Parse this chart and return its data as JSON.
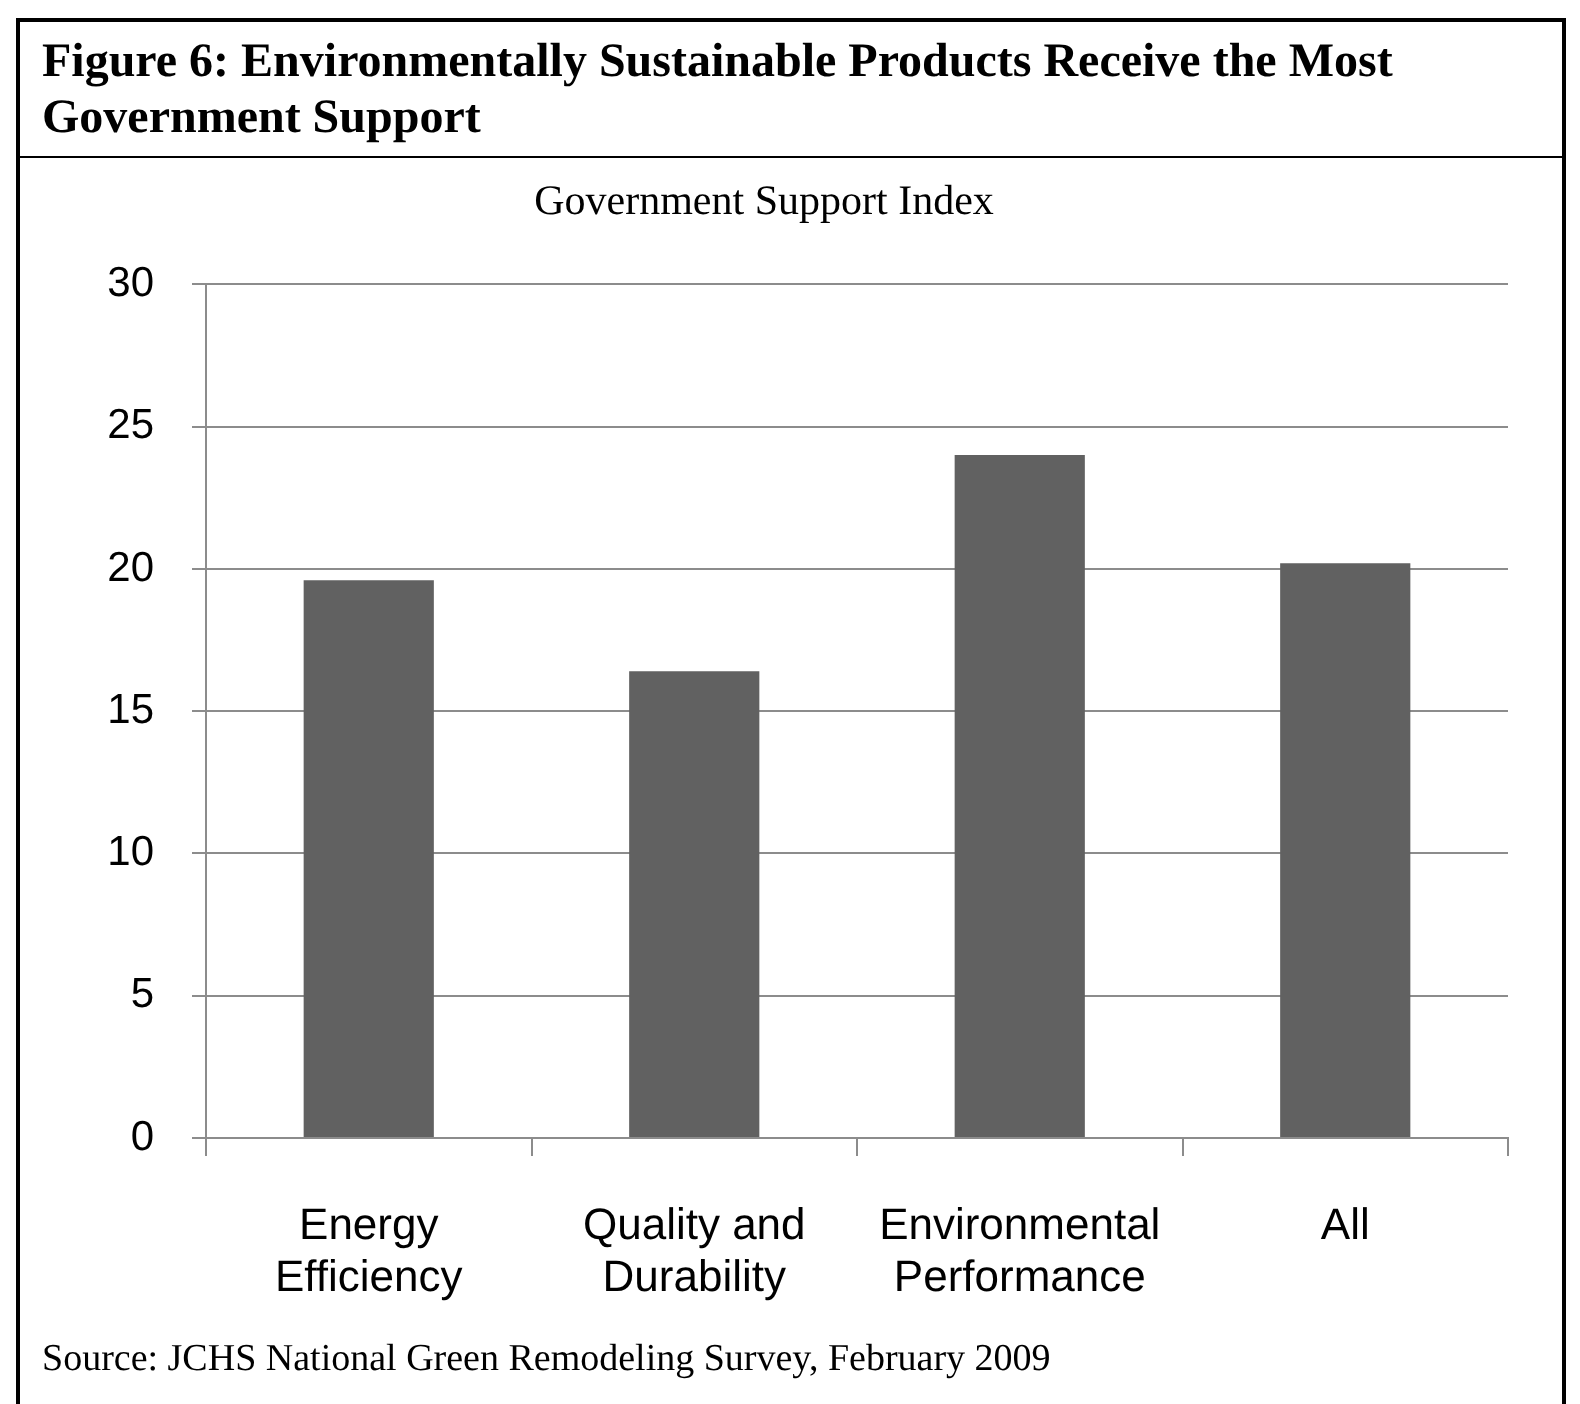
{
  "chart_data": {
    "type": "bar",
    "title": "Figure 6: Environmentally Sustainable Products Receive the Most Government Support",
    "subtitle": "Government Support Index",
    "categories": [
      "Energy Efficiency",
      "Quality and Durability",
      "Environmental Performance",
      "All"
    ],
    "values": [
      19.6,
      16.4,
      24.0,
      20.2
    ],
    "color": "#616161",
    "ylim": [
      0,
      30
    ],
    "yticks": [
      0,
      5,
      10,
      15,
      20,
      25,
      30
    ],
    "grid": "y",
    "annotations": [
      "Source: JCHS National Green Remodeling Survey, February 2009"
    ]
  }
}
